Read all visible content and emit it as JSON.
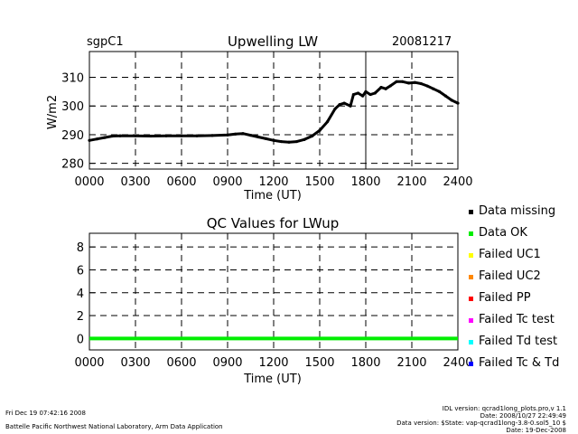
{
  "header": {
    "site": "sgpC1",
    "date": "20081217"
  },
  "chart_data": [
    {
      "type": "line",
      "title": "Upwelling LW",
      "xlabel": "Time (UT)",
      "ylabel": "W/m2",
      "x_ticks": [
        "0000",
        "0300",
        "0600",
        "0900",
        "1200",
        "1500",
        "1800",
        "2100",
        "2400"
      ],
      "y_ticks": [
        "280",
        "290",
        "300",
        "310"
      ],
      "xlim": [
        0,
        24
      ],
      "ylim": [
        278,
        319
      ],
      "grid": "dashed",
      "series": [
        {
          "color": "#000000",
          "x": [
            0,
            0.5,
            1,
            1.5,
            2,
            3,
            4,
            5,
            6,
            7,
            8,
            9,
            9.5,
            10,
            10.5,
            11,
            11.5,
            12,
            12.5,
            13,
            13.5,
            14,
            14.5,
            15,
            15.5,
            16,
            16.3,
            16.6,
            17,
            17.2,
            17.5,
            17.8,
            18,
            18.3,
            18.6,
            19,
            19.3,
            19.6,
            20,
            20.4,
            20.8,
            21.2,
            21.6,
            22,
            22.4,
            22.8,
            23.2,
            23.6,
            24
          ],
          "values": [
            288,
            288.5,
            289,
            289.5,
            289.6,
            289.6,
            289.5,
            289.6,
            289.6,
            289.6,
            289.7,
            289.9,
            290.2,
            290.4,
            289.8,
            289.2,
            288.6,
            288,
            287.6,
            287.4,
            287.6,
            288.3,
            289.5,
            291.5,
            294.5,
            299,
            300.5,
            301,
            300,
            304,
            304.5,
            303.5,
            305,
            304,
            304.5,
            306.5,
            306,
            307,
            308.5,
            308.5,
            308,
            308.2,
            307.8,
            307,
            306,
            305,
            303.5,
            302,
            301
          ]
        }
      ]
    },
    {
      "type": "line",
      "title": "QC Values for LWup",
      "xlabel": "Time (UT)",
      "ylabel": "",
      "x_ticks": [
        "0000",
        "0300",
        "0600",
        "0900",
        "1200",
        "1500",
        "1800",
        "2100",
        "2400"
      ],
      "y_ticks": [
        "0",
        "2",
        "4",
        "6",
        "8"
      ],
      "xlim": [
        0,
        24
      ],
      "ylim": [
        -1,
        9.2
      ],
      "grid": "dashed",
      "series": [
        {
          "color": "#00ee00",
          "x": [
            0,
            24
          ],
          "values": [
            0,
            0
          ]
        }
      ]
    }
  ],
  "legend": [
    {
      "label": "Data missing",
      "color": "#000000"
    },
    {
      "label": "Data OK",
      "color": "#00ee00"
    },
    {
      "label": "Failed UC1",
      "color": "#ffff00"
    },
    {
      "label": "Failed UC2",
      "color": "#ff8800"
    },
    {
      "label": "Failed PP",
      "color": "#ff0000"
    },
    {
      "label": "Failed Tc test",
      "color": "#ff00ff"
    },
    {
      "label": "Failed Td test",
      "color": "#00ffff"
    },
    {
      "label": "Failed Tc & Td",
      "color": "#0000ff"
    }
  ],
  "footer": {
    "timestamp": "Fri Dec 19 07:42:16 2008",
    "lab": "Battelle Pacific Northwest National Laboratory, Arm Data Application",
    "idl_version": "IDL version: qcrad1long_plots.pro,v 1.1",
    "idl_date": "Date: 2008/10/27 22:49:49",
    "data_version": "Data version: $State: vap-qcrad1long-3.8-0.sol5_10 $",
    "data_date": "Date: 19-Dec-2008"
  }
}
